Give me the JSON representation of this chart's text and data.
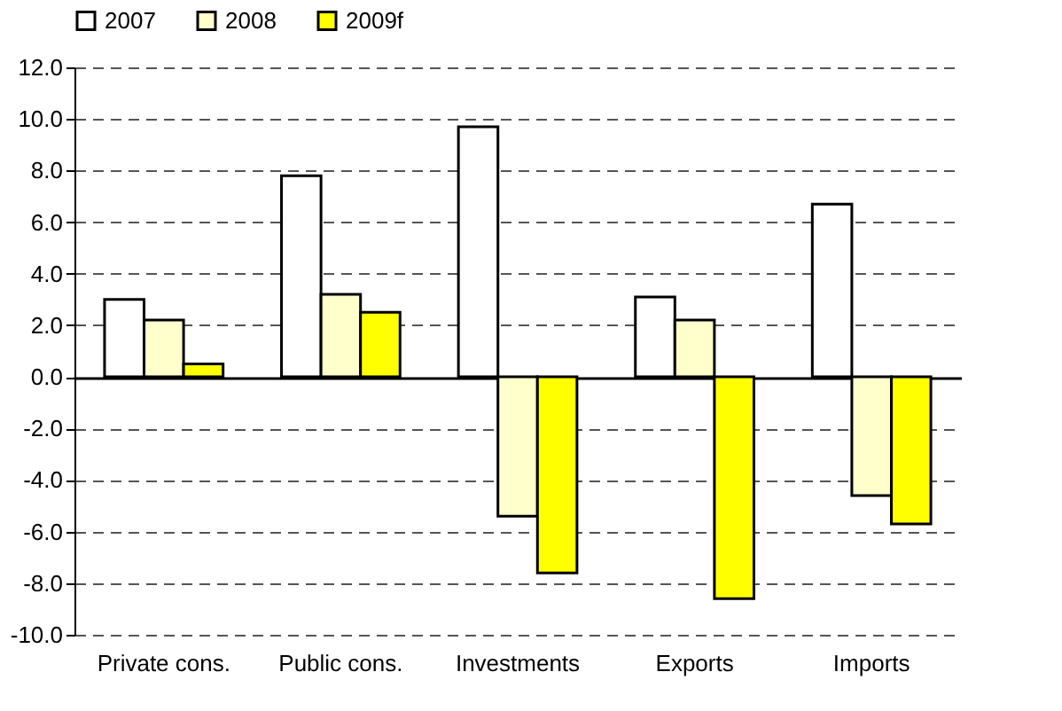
{
  "chart_data": {
    "type": "bar",
    "categories": [
      "Private cons.",
      "Public cons.",
      "Investments",
      "Exports",
      "Imports"
    ],
    "series": [
      {
        "name": "2007",
        "color": "#ffffff",
        "values": [
          3.0,
          7.8,
          9.7,
          3.1,
          6.7
        ]
      },
      {
        "name": "2008",
        "color": "#ffffcc",
        "values": [
          2.2,
          3.2,
          -5.4,
          2.2,
          -4.6
        ]
      },
      {
        "name": "2009f",
        "color": "#ffff00",
        "values": [
          0.5,
          2.5,
          -7.6,
          -8.6,
          -5.7
        ]
      }
    ],
    "ylim": [
      -10,
      12
    ],
    "yticks": [
      {
        "value": -10,
        "label": "-10.0"
      },
      {
        "value": -8,
        "label": "-8.0"
      },
      {
        "value": -6,
        "label": "-6.0"
      },
      {
        "value": -4,
        "label": "-4.0"
      },
      {
        "value": -2,
        "label": "-2.0"
      },
      {
        "value": 0,
        "label": "0.0"
      },
      {
        "value": 2,
        "label": "2.0"
      },
      {
        "value": 4,
        "label": "4.0"
      },
      {
        "value": 6,
        "label": "6.0"
      },
      {
        "value": 8,
        "label": "8.0"
      },
      {
        "value": 10,
        "label": "10.0"
      },
      {
        "value": 12,
        "label": "12.0"
      }
    ],
    "grid": "y",
    "legend": "top"
  }
}
